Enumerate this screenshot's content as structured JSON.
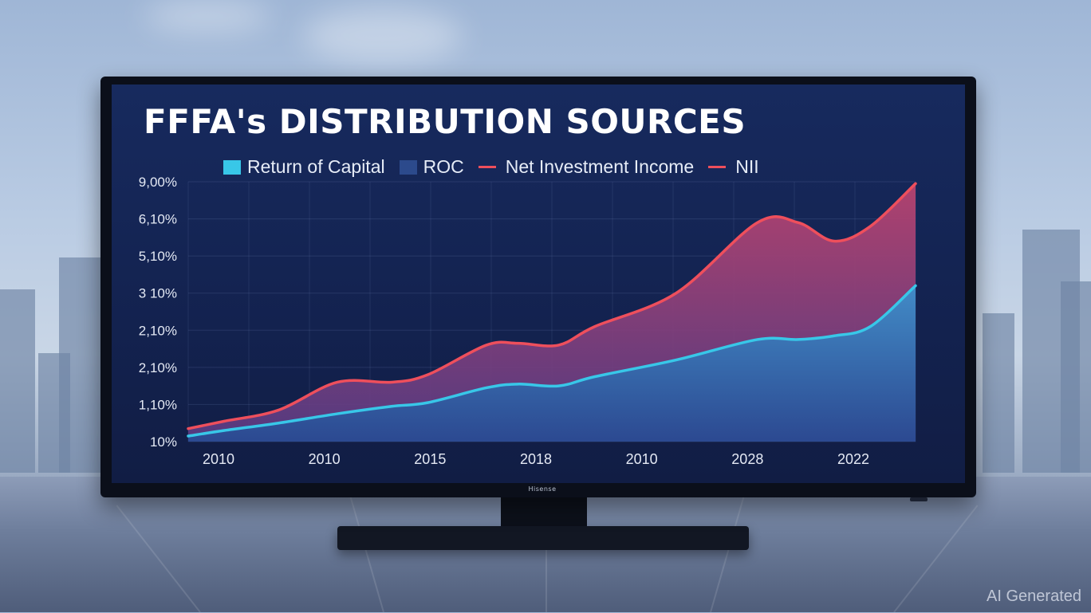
{
  "chart_data": {
    "type": "area",
    "title": "FFFA's DISTRIBUTION SOURCES",
    "legend": [
      {
        "label": "Return of Capital",
        "marker": "square",
        "color": "#38c7e8"
      },
      {
        "label": "ROC",
        "marker": "square",
        "color": "#2c4a8c"
      },
      {
        "label": "Net Investment Income",
        "marker": "line",
        "color": "#ee4f5c"
      },
      {
        "label": "NII",
        "marker": "line",
        "color": "#ee4f5c"
      }
    ],
    "y_tick_labels": [
      "10%",
      "1,10%",
      "2,10%",
      "2,10%",
      "3 10%",
      "5,10%",
      "6,10%",
      "9,00%"
    ],
    "x_tick_labels": [
      "2010",
      "2010",
      "2015",
      "2018",
      "2010",
      "2028",
      "2022"
    ],
    "ylim": [
      0,
      7
    ],
    "x_points": [
      0,
      0.8,
      2,
      3.3,
      4.5,
      5.3,
      6.6,
      7.3,
      8.2,
      9,
      10.8,
      12.6,
      13.5,
      14.3,
      15.1,
      16.1
    ],
    "series": [
      {
        "name": "Return of Capital",
        "color": "#38c7e8",
        "values": [
          0.15,
          0.3,
          0.5,
          0.75,
          0.95,
          1.05,
          1.45,
          1.55,
          1.5,
          1.75,
          2.2,
          2.75,
          2.75,
          2.85,
          3.1,
          4.2
        ]
      },
      {
        "name": "Net Investment Income",
        "color": "#ee4f5c",
        "values": [
          0.35,
          0.55,
          0.85,
          1.6,
          1.6,
          1.8,
          2.6,
          2.65,
          2.6,
          3.1,
          4.0,
          5.9,
          5.9,
          5.4,
          5.8,
          6.95
        ]
      }
    ],
    "grid": true
  },
  "screen": {
    "brand_text": "Hisense",
    "watermark": "AI Generated"
  }
}
